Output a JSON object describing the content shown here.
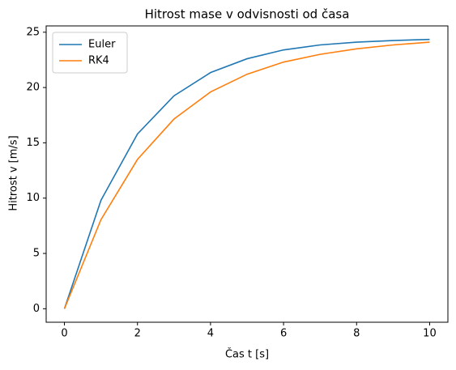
{
  "chart_data": {
    "type": "line",
    "title": "Hitrost mase v odvisnosti od časa",
    "x_label": "Čas t [s]",
    "y_label": "Hitrost v [m/s]",
    "x": [
      0,
      1,
      2,
      3,
      4,
      5,
      6,
      7,
      8,
      9,
      10
    ],
    "series": [
      {
        "name": "Euler",
        "color": "#1f77b4",
        "values": [
          0,
          9.8,
          15.8,
          19.25,
          21.35,
          22.6,
          23.4,
          23.85,
          24.1,
          24.25,
          24.35
        ]
      },
      {
        "name": "RK4",
        "color": "#ff7f0e",
        "values": [
          0,
          8.05,
          13.5,
          17.15,
          19.6,
          21.2,
          22.3,
          23.0,
          23.5,
          23.85,
          24.1
        ]
      }
    ],
    "xlim": [
      -0.5,
      10.5
    ],
    "xticks": [
      0,
      2,
      4,
      6,
      8,
      10
    ],
    "ylim": [
      -1.22,
      25.57
    ],
    "yticks": [
      0,
      5,
      10,
      15,
      20,
      25
    ],
    "grid": false,
    "legend": "upper left"
  }
}
